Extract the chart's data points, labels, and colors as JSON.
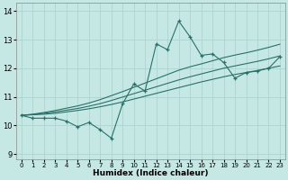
{
  "title": "",
  "xlabel": "Humidex (Indice chaleur)",
  "bg_color": "#c5e8e5",
  "grid_color": "#aed4d0",
  "line_color": "#2a7068",
  "xlim": [
    -0.5,
    23.5
  ],
  "ylim": [
    8.8,
    14.3
  ],
  "xticks": [
    0,
    1,
    2,
    3,
    4,
    5,
    6,
    7,
    8,
    9,
    10,
    11,
    12,
    13,
    14,
    15,
    16,
    17,
    18,
    19,
    20,
    21,
    22,
    23
  ],
  "yticks": [
    9,
    10,
    11,
    12,
    13,
    14
  ],
  "x": [
    0,
    1,
    2,
    3,
    4,
    5,
    6,
    7,
    8,
    9,
    10,
    11,
    12,
    13,
    14,
    15,
    16,
    17,
    18,
    19,
    20,
    21,
    22,
    23
  ],
  "y_main": [
    10.35,
    10.25,
    10.25,
    10.25,
    10.15,
    9.95,
    10.1,
    9.85,
    9.55,
    10.75,
    11.45,
    11.2,
    12.85,
    12.65,
    13.65,
    13.1,
    12.45,
    12.5,
    12.2,
    11.65,
    11.85,
    11.9,
    12.0,
    12.4
  ],
  "y_line1": [
    10.35,
    10.37,
    10.39,
    10.42,
    10.47,
    10.52,
    10.58,
    10.65,
    10.73,
    10.82,
    10.92,
    11.02,
    11.12,
    11.22,
    11.32,
    11.42,
    11.52,
    11.61,
    11.7,
    11.78,
    11.85,
    11.92,
    12.0,
    12.08
  ],
  "y_line2": [
    10.35,
    10.38,
    10.42,
    10.47,
    10.53,
    10.59,
    10.67,
    10.76,
    10.87,
    10.99,
    11.11,
    11.23,
    11.35,
    11.47,
    11.59,
    11.7,
    11.8,
    11.9,
    12.0,
    12.08,
    12.16,
    12.24,
    12.33,
    12.43
  ],
  "y_line3": [
    10.35,
    10.39,
    10.45,
    10.52,
    10.6,
    10.68,
    10.78,
    10.9,
    11.04,
    11.18,
    11.33,
    11.48,
    11.63,
    11.78,
    11.93,
    12.05,
    12.15,
    12.26,
    12.37,
    12.46,
    12.54,
    12.63,
    12.73,
    12.84
  ]
}
